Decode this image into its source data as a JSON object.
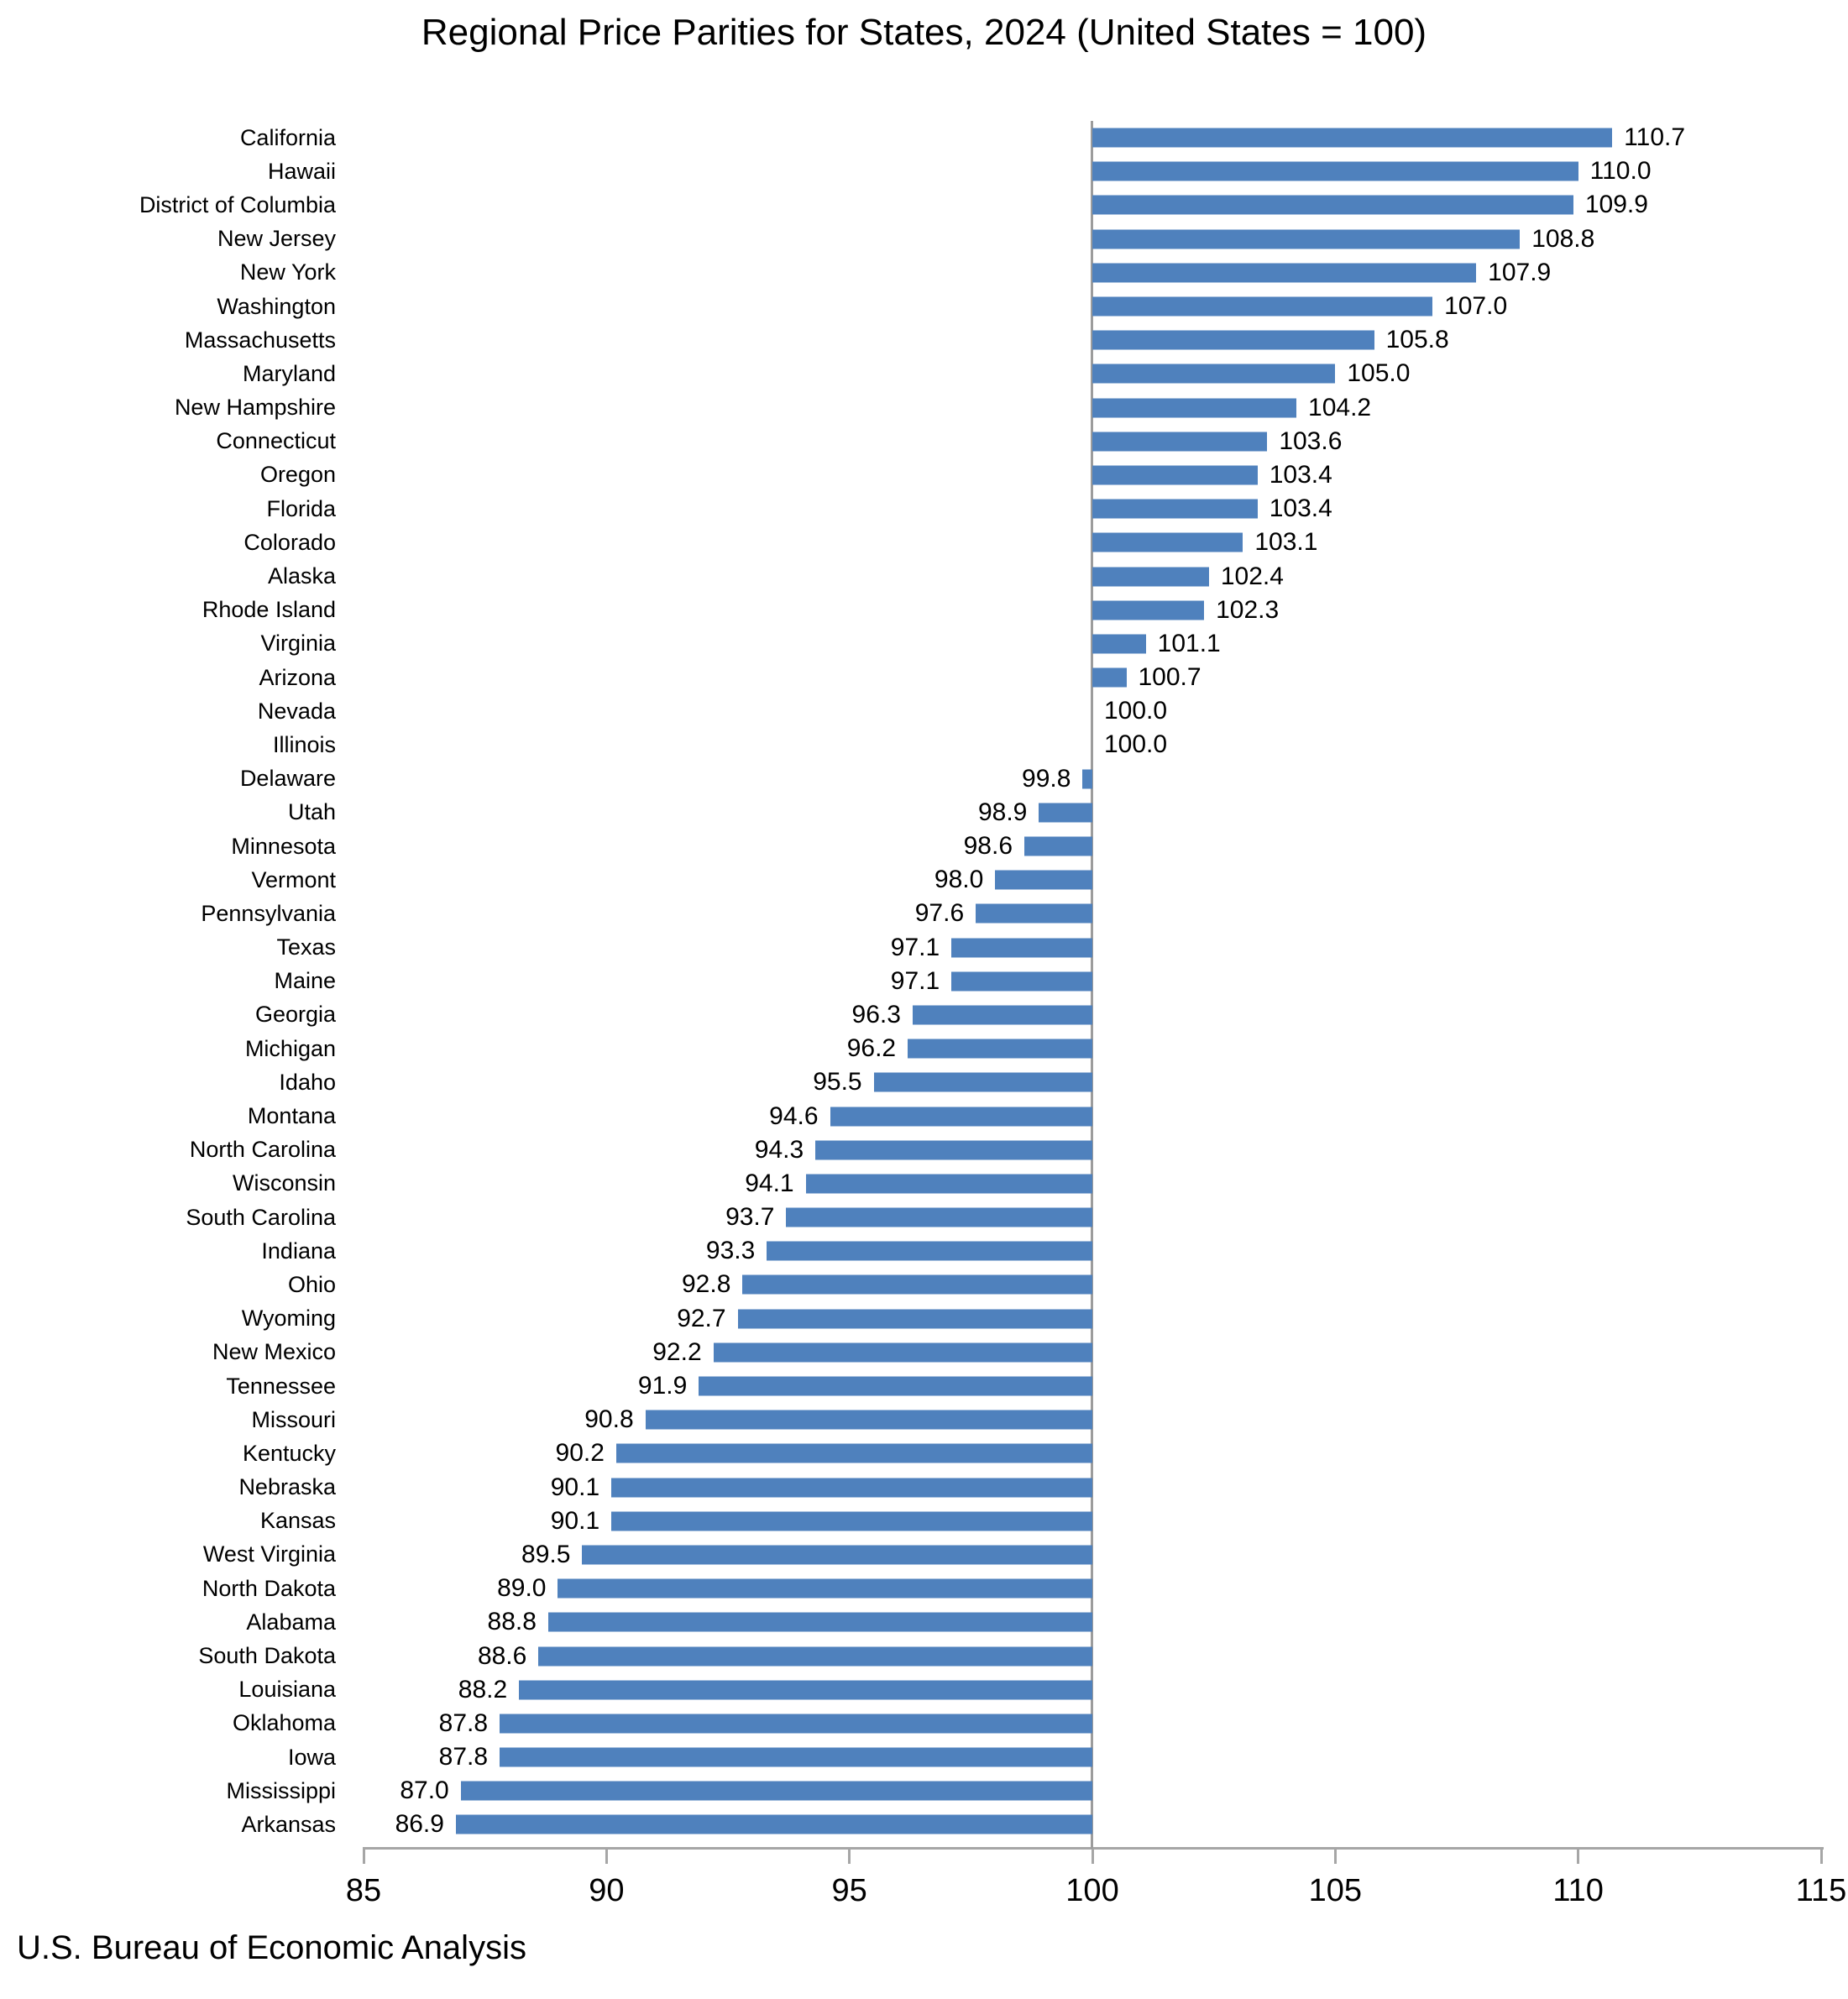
{
  "title": "Regional Price Parities for States, 2024 (United States = 100)",
  "source": "U.S. Bureau of Economic Analysis",
  "colors": {
    "bar": "#4F81BD",
    "axis": "#A6A6A6",
    "baseline": "#9C9C9C",
    "text": "#000000"
  },
  "chart_data": {
    "type": "bar",
    "orientation": "horizontal",
    "title": "Regional Price Parities for States, 2024 (United States = 100)",
    "xlabel": "",
    "ylabel": "",
    "xlim": [
      85,
      115
    ],
    "x_ticks": [
      85,
      90,
      95,
      100,
      105,
      110,
      115
    ],
    "baseline": 100,
    "grid": false,
    "legend": false,
    "value_label_decimals": 1,
    "categories": [
      "California",
      "Hawaii",
      "District of Columbia",
      "New Jersey",
      "New York",
      "Washington",
      "Massachusetts",
      "Maryland",
      "New Hampshire",
      "Connecticut",
      "Oregon",
      "Florida",
      "Colorado",
      "Alaska",
      "Rhode Island",
      "Virginia",
      "Arizona",
      "Nevada",
      "Illinois",
      "Delaware",
      "Utah",
      "Minnesota",
      "Vermont",
      "Pennsylvania",
      "Texas",
      "Maine",
      "Georgia",
      "Michigan",
      "Idaho",
      "Montana",
      "North Carolina",
      "Wisconsin",
      "South Carolina",
      "Indiana",
      "Ohio",
      "Wyoming",
      "New Mexico",
      "Tennessee",
      "Missouri",
      "Kentucky",
      "Nebraska",
      "Kansas",
      "West Virginia",
      "North Dakota",
      "Alabama",
      "South Dakota",
      "Louisiana",
      "Oklahoma",
      "Iowa",
      "Mississippi",
      "Arkansas"
    ],
    "values": [
      110.7,
      110.0,
      109.9,
      108.8,
      107.9,
      107.0,
      105.8,
      105.0,
      104.2,
      103.6,
      103.4,
      103.4,
      103.1,
      102.4,
      102.3,
      101.1,
      100.7,
      100.0,
      100.0,
      99.8,
      98.9,
      98.6,
      98.0,
      97.6,
      97.1,
      97.1,
      96.3,
      96.2,
      95.5,
      94.6,
      94.3,
      94.1,
      93.7,
      93.3,
      92.8,
      92.7,
      92.2,
      91.9,
      90.8,
      90.2,
      90.1,
      90.1,
      89.5,
      89.0,
      88.8,
      88.6,
      88.2,
      87.8,
      87.8,
      87.0,
      86.9
    ]
  }
}
